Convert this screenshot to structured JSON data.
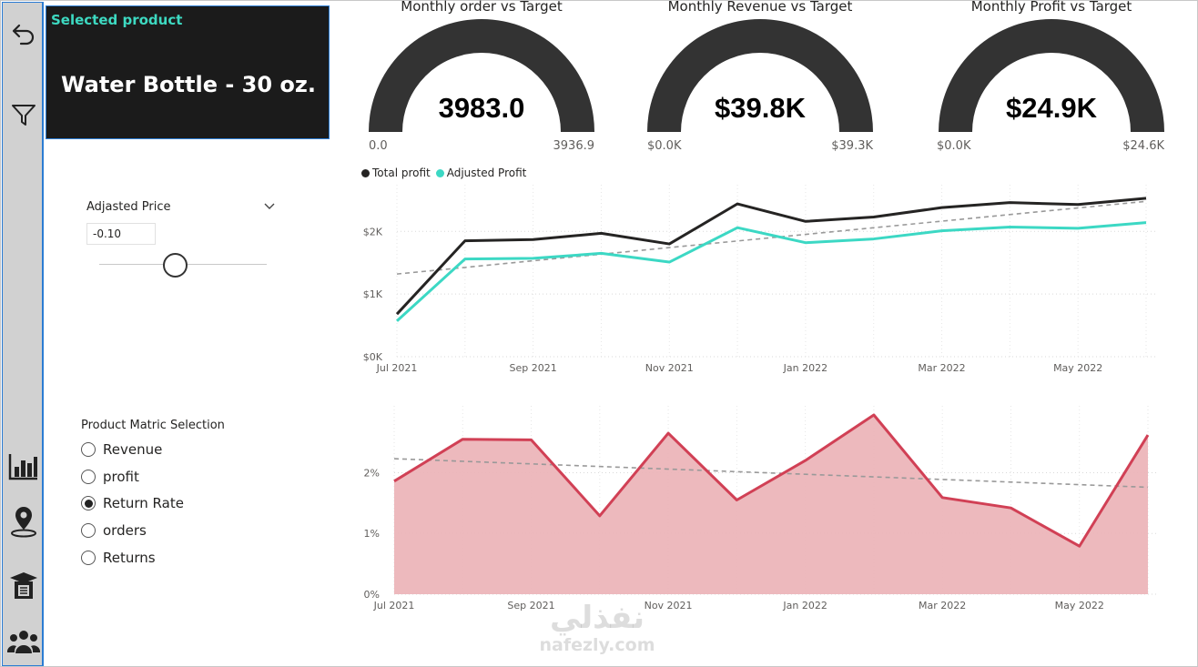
{
  "nav": {
    "icons": [
      "back-arrow-icon",
      "filter-icon",
      "bar-chart-icon",
      "map-pin-icon",
      "product-box-icon",
      "people-icon"
    ]
  },
  "card": {
    "label": "Selected product",
    "value": "Water Bottle - 30 oz."
  },
  "slicer": {
    "title": "Adjasted Price",
    "value": "-0.10",
    "slider_fraction": 0.45
  },
  "radio": {
    "title": "Product Matric Selection",
    "options": [
      "Revenue",
      "profit",
      "Return Rate",
      "orders",
      "Returns"
    ],
    "selected": "Return Rate"
  },
  "gauges": [
    {
      "title": "Monthly order vs Target",
      "value": "3983.0",
      "min": "0.0",
      "max": "3936.9"
    },
    {
      "title": "Monthly Revenue vs Target",
      "value": "$39.8K",
      "min": "$0.0K",
      "max": "$39.3K"
    },
    {
      "title": "Monthly Profit vs Target",
      "value": "$24.9K",
      "min": "$0.0K",
      "max": "$24.6K"
    }
  ],
  "colors": {
    "gauge": "#333333",
    "total_profit": "#252423",
    "adjusted_profit": "#3cd8c4",
    "return_line": "#d14055",
    "return_fill": "#ecb5b9",
    "card_label": "#3dd9c1",
    "nav_border": "#2b7cd3"
  },
  "chart_data": [
    {
      "type": "line",
      "x": [
        "Jul 2021",
        "Aug 2021",
        "Sep 2021",
        "Oct 2021",
        "Nov 2021",
        "Dec 2021",
        "Jan 2022",
        "Feb 2022",
        "Mar 2022",
        "Apr 2022",
        "May 2022",
        "Jun 2022"
      ],
      "x_ticks": [
        "Jul 2021",
        "Sep 2021",
        "Nov 2021",
        "Jan 2022",
        "Mar 2022",
        "May 2022"
      ],
      "y_ticks": [
        "$0K",
        "$1K",
        "$2K"
      ],
      "ylim": [
        0,
        2600
      ],
      "series": [
        {
          "name": "Total profit",
          "values": [
            680,
            1850,
            1870,
            1970,
            1800,
            2440,
            2160,
            2230,
            2380,
            2460,
            2430,
            2530
          ]
        },
        {
          "name": "Adjusted Profit",
          "values": [
            570,
            1560,
            1570,
            1650,
            1510,
            2060,
            1820,
            1880,
            2010,
            2070,
            2050,
            2140
          ]
        }
      ],
      "trend": [
        1320,
        2480
      ],
      "grid": true,
      "legend": "top-left"
    },
    {
      "type": "area",
      "x": [
        "Jul 2021",
        "Aug 2021",
        "Sep 2021",
        "Oct 2021",
        "Nov 2021",
        "Dec 2021",
        "Jan 2022",
        "Feb 2022",
        "Mar 2022",
        "Apr 2022",
        "May 2022",
        "Jun 2022"
      ],
      "x_ticks": [
        "Jul 2021",
        "Sep 2021",
        "Nov 2021",
        "Jan 2022",
        "Mar 2022",
        "May 2022"
      ],
      "y_ticks": [
        "0%",
        "1%",
        "2%"
      ],
      "ylim": [
        0,
        2.95
      ],
      "series": [
        {
          "values": [
            1.86,
            2.55,
            2.54,
            1.29,
            2.65,
            1.55,
            2.2,
            2.95,
            1.59,
            1.42,
            0.79,
            2.62
          ]
        }
      ],
      "trend": [
        2.23,
        1.76
      ],
      "grid": true
    }
  ],
  "watermark": {
    "line1": "نفذلي",
    "line2": "nafezly.com"
  }
}
